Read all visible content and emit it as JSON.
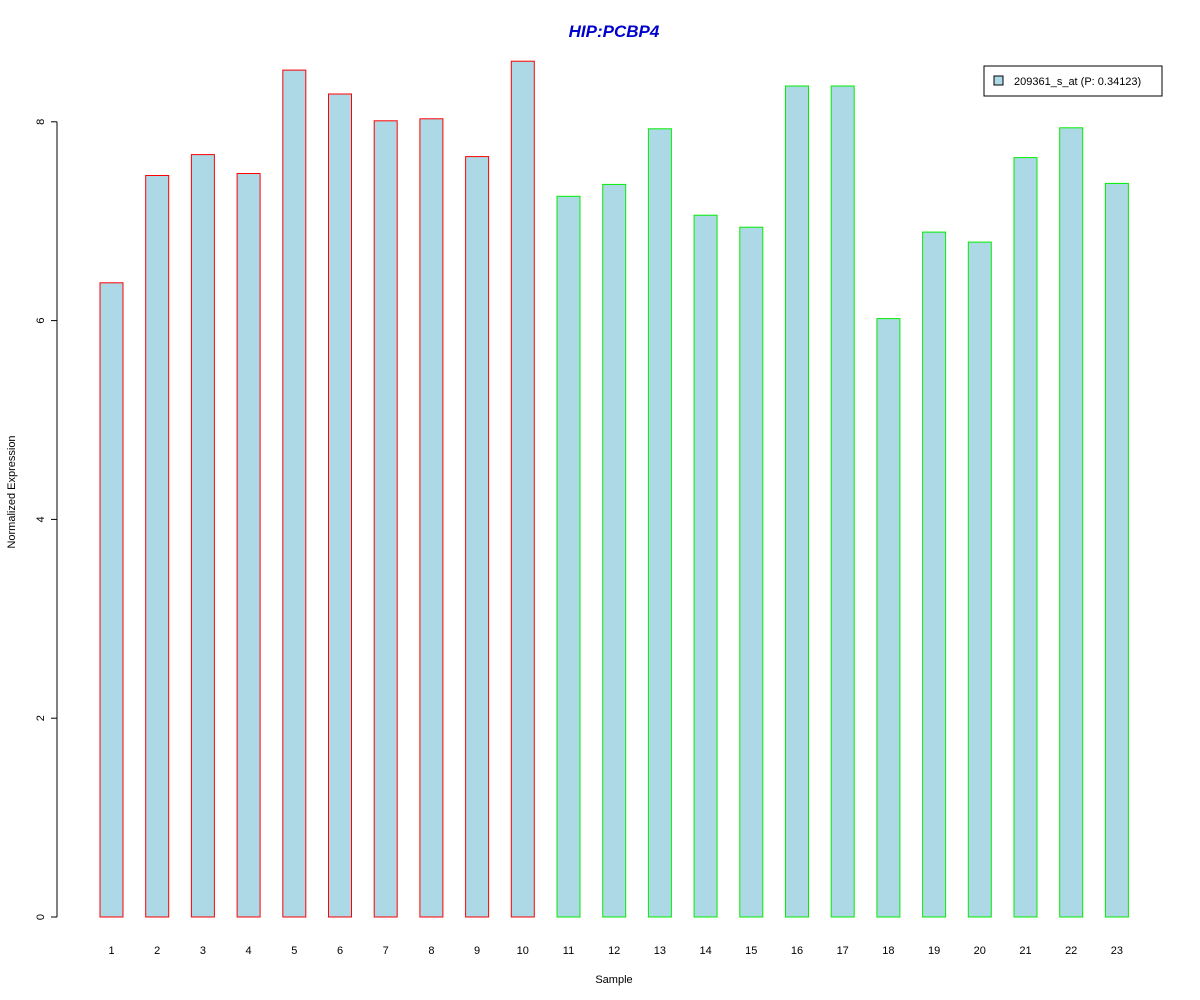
{
  "chart_data": {
    "type": "bar",
    "title": "HIP:PCBP4",
    "xlabel": "Sample",
    "ylabel": "Normalized Expression",
    "categories": [
      "1",
      "2",
      "3",
      "4",
      "5",
      "6",
      "7",
      "8",
      "9",
      "10",
      "11",
      "12",
      "13",
      "14",
      "15",
      "16",
      "17",
      "18",
      "19",
      "20",
      "21",
      "22",
      "23"
    ],
    "series": [
      {
        "name": "209361_s_at (P: 0.34123)",
        "values": [
          6.38,
          7.46,
          7.67,
          7.48,
          8.52,
          8.28,
          8.01,
          8.03,
          7.65,
          8.61,
          7.25,
          7.37,
          7.93,
          7.06,
          6.94,
          8.36,
          8.36,
          6.02,
          6.89,
          6.79,
          7.64,
          7.94,
          7.38
        ]
      }
    ],
    "bar_outline_colors": [
      "#ff0000",
      "#ff0000",
      "#ff0000",
      "#ff0000",
      "#ff0000",
      "#ff0000",
      "#ff0000",
      "#ff0000",
      "#ff0000",
      "#ff0000",
      "#00ee00",
      "#00ee00",
      "#00ee00",
      "#00ee00",
      "#00ee00",
      "#00ee00",
      "#00ee00",
      "#00ee00",
      "#00ee00",
      "#00ee00",
      "#00ee00",
      "#00ee00",
      "#00ee00"
    ],
    "yticks": [
      "0",
      "2",
      "4",
      "6",
      "8"
    ],
    "ylim": [
      0,
      8.7
    ],
    "grid": false,
    "legend_position": "top-right",
    "colors": {
      "bar_fill": "#add8e6",
      "title": "#0000cd"
    }
  }
}
